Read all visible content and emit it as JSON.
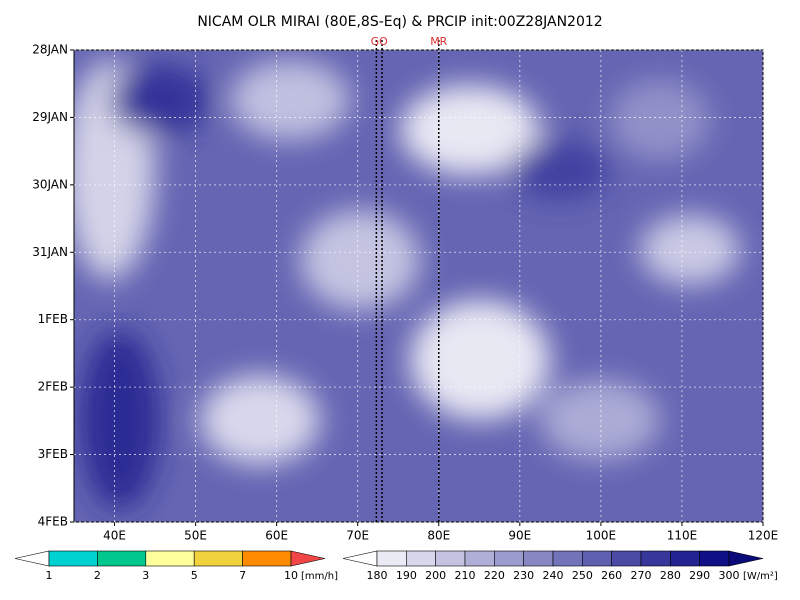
{
  "chart_data": {
    "type": "hovmoller",
    "title": "NICAM OLR MIRAI (80E,8S-Eq) & PRCIP init:00Z28JAN2012",
    "xlim": [
      35,
      120
    ],
    "xticks": [
      {
        "value": 40,
        "label": "40E"
      },
      {
        "value": 50,
        "label": "50E"
      },
      {
        "value": 60,
        "label": "60E"
      },
      {
        "value": 70,
        "label": "70E"
      },
      {
        "value": 80,
        "label": "80E"
      },
      {
        "value": 90,
        "label": "90E"
      },
      {
        "value": 100,
        "label": "100E"
      },
      {
        "value": 110,
        "label": "110E"
      },
      {
        "value": 120,
        "label": "120E"
      }
    ],
    "ylim": [
      0,
      7
    ],
    "y_inverted": true,
    "yticks": [
      {
        "value": 0,
        "label": "28JAN"
      },
      {
        "value": 1,
        "label": "29JAN"
      },
      {
        "value": 2,
        "label": "30JAN"
      },
      {
        "value": 3,
        "label": "31JAN"
      },
      {
        "value": 4,
        "label": "1FEB"
      },
      {
        "value": 5,
        "label": "2FEB"
      },
      {
        "value": 6,
        "label": "3FEB"
      },
      {
        "value": 7,
        "label": "4FEB"
      }
    ],
    "grid": true,
    "markers": [
      {
        "label": "GO",
        "x": [
          72.3,
          73.0
        ],
        "color": "#e03030"
      },
      {
        "label": "MR",
        "x": [
          80
        ],
        "color": "#e03030"
      }
    ],
    "colorbars": [
      {
        "levels": [
          1,
          2,
          3,
          5,
          7,
          10
        ],
        "unit": "[mm/h]",
        "colors": [
          "#ffffff",
          "#00d2d2",
          "#00c88c",
          "#ffff9b",
          "#f0d23c",
          "#ff8c00",
          "#f04646"
        ]
      },
      {
        "levels": [
          180,
          190,
          200,
          210,
          220,
          230,
          240,
          250,
          260,
          270,
          280,
          290,
          300
        ],
        "unit": "[W/m²]",
        "colors": [
          "#ffffff",
          "#ebebf5",
          "#d7d7eb",
          "#c3c3e1",
          "#afafd7",
          "#9b9bcd",
          "#8787c3",
          "#7373b9",
          "#5f5faf",
          "#4b4ba5",
          "#37379b",
          "#232391",
          "#0f0f87",
          "#0a0a78"
        ]
      }
    ]
  }
}
